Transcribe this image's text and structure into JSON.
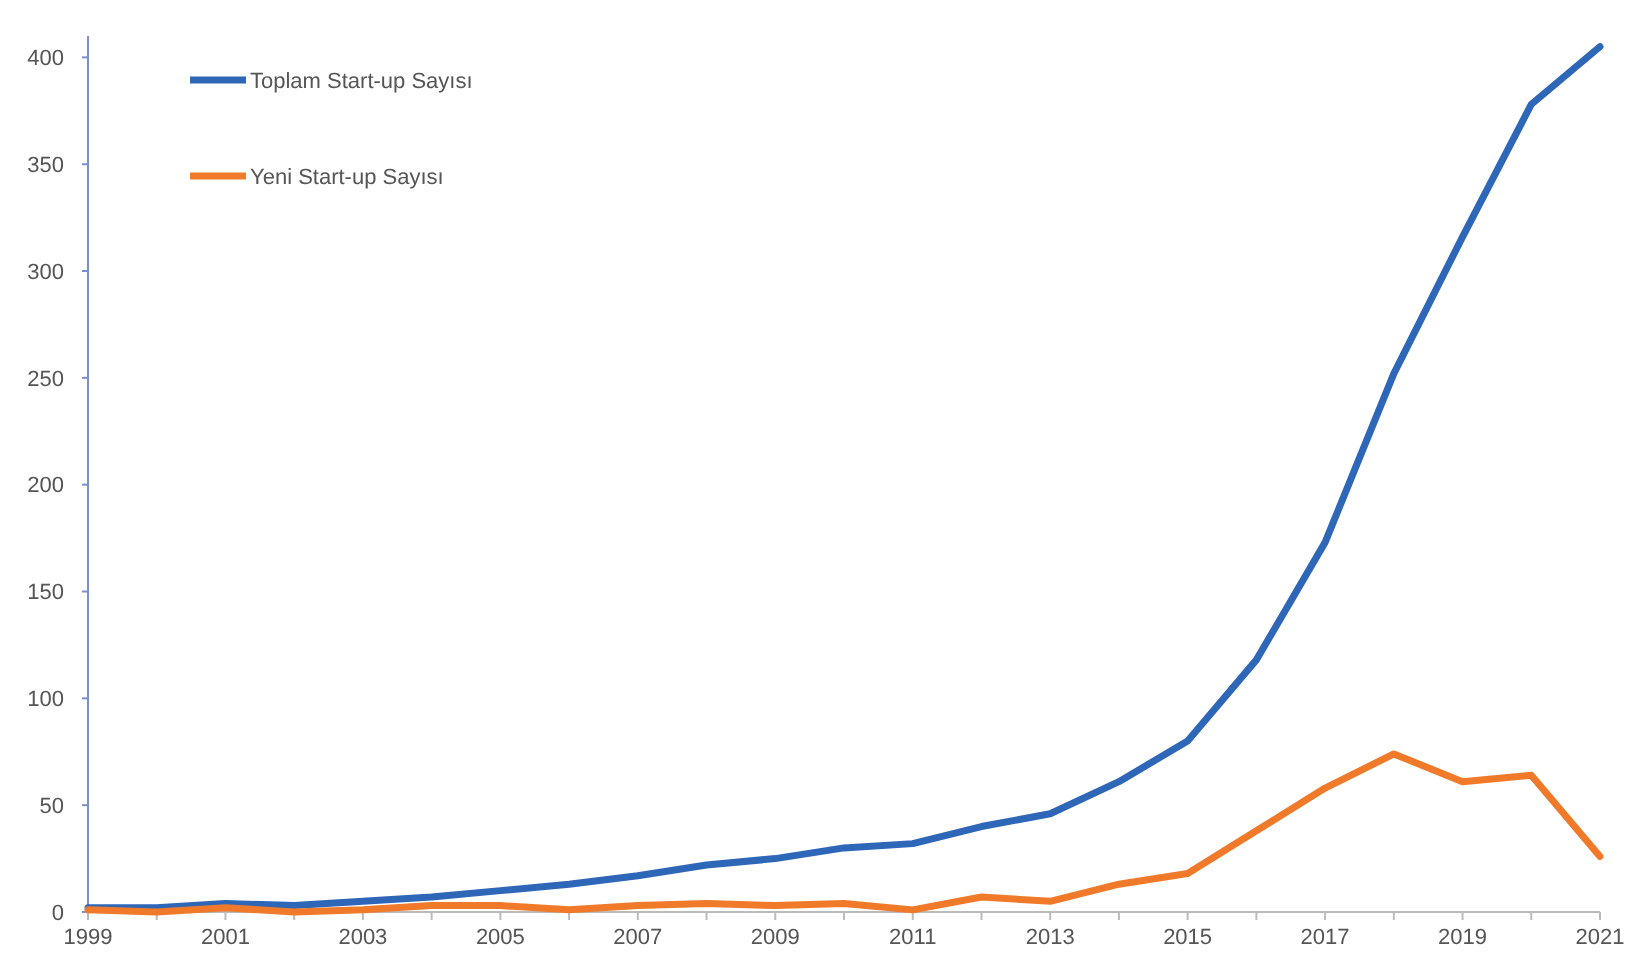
{
  "chart_data": {
    "type": "line",
    "x": [
      1999,
      2000,
      2001,
      2002,
      2003,
      2004,
      2005,
      2006,
      2007,
      2008,
      2009,
      2010,
      2011,
      2012,
      2013,
      2014,
      2015,
      2016,
      2017,
      2018,
      2019,
      2020,
      2021
    ],
    "series": [
      {
        "name": "Toplam Start-up Sayısı",
        "color": "#2e66b8",
        "values": [
          2,
          2,
          4,
          3,
          5,
          7,
          10,
          13,
          17,
          22,
          25,
          30,
          32,
          40,
          46,
          61,
          80,
          118,
          173,
          252,
          316,
          378,
          405
        ]
      },
      {
        "name": "Yeni Start-up Sayısı",
        "color": "#f07a2a",
        "values": [
          1,
          0,
          2,
          0,
          1,
          3,
          3,
          1,
          3,
          4,
          3,
          4,
          1,
          7,
          5,
          13,
          18,
          38,
          58,
          74,
          61,
          64,
          26
        ]
      }
    ],
    "xlim": [
      1999,
      2021
    ],
    "xticks": [
      1999,
      {
        "value": 2000,
        "label": null
      },
      2001,
      {
        "value": 2002,
        "label": null
      },
      2003,
      {
        "value": 2004,
        "label": null
      },
      2005,
      {
        "value": 2006,
        "label": null
      },
      2007,
      {
        "value": 2008,
        "label": null
      },
      2009,
      {
        "value": 2010,
        "label": null
      },
      2011,
      {
        "value": 2012,
        "label": null
      },
      2013,
      {
        "value": 2014,
        "label": null
      },
      2015,
      {
        "value": 2016,
        "label": null
      },
      2017,
      {
        "value": 2018,
        "label": null
      },
      2019,
      {
        "value": 2020,
        "label": null
      },
      2021
    ],
    "ylim": [
      0,
      410
    ],
    "yticks": [
      0,
      50,
      100,
      150,
      200,
      250,
      300,
      350,
      400
    ],
    "grid": false,
    "legend": "top left",
    "marker": "none",
    "line_style": "solid"
  }
}
